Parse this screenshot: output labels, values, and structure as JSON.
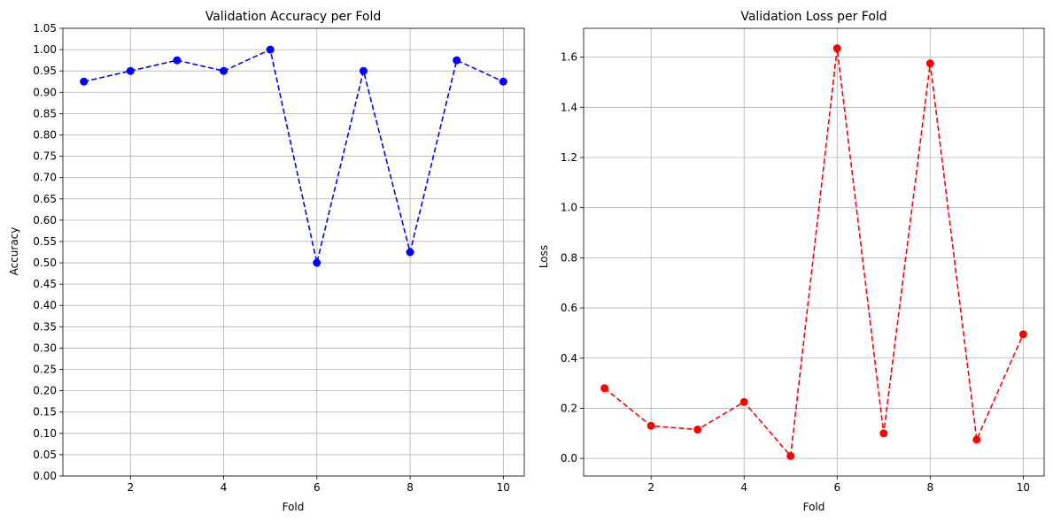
{
  "chart_data": [
    {
      "type": "line",
      "title": "Validation Accuracy per Fold",
      "xlabel": "Fold",
      "ylabel": "Accuracy",
      "x": [
        1,
        2,
        3,
        4,
        5,
        6,
        7,
        8,
        9,
        10
      ],
      "series": [
        {
          "values": [
            0.925,
            0.95,
            0.975,
            0.95,
            1.0,
            0.5,
            0.95,
            0.525,
            0.975,
            0.925
          ],
          "color": "#0000ff",
          "linestyle": "dashed",
          "marker": "circle"
        }
      ],
      "xlim": [
        0.55,
        10.45
      ],
      "ylim": [
        0.0,
        1.05
      ],
      "xticks": [
        2,
        4,
        6,
        8,
        10
      ],
      "xtick_labels": [
        "2",
        "4",
        "6",
        "8",
        "10"
      ],
      "yticks": [
        0.0,
        0.05,
        0.1,
        0.15,
        0.2,
        0.25,
        0.3,
        0.35,
        0.4,
        0.45,
        0.5,
        0.55,
        0.6,
        0.65,
        0.7,
        0.75,
        0.8,
        0.85,
        0.9,
        0.95,
        1.0,
        1.05
      ],
      "ytick_labels": [
        "0.00",
        "0.05",
        "0.10",
        "0.15",
        "0.20",
        "0.25",
        "0.30",
        "0.35",
        "0.40",
        "0.45",
        "0.50",
        "0.55",
        "0.60",
        "0.65",
        "0.70",
        "0.75",
        "0.80",
        "0.85",
        "0.90",
        "0.95",
        "1.00",
        "1.05"
      ],
      "grid": true
    },
    {
      "type": "line",
      "title": "Validation Loss per Fold",
      "xlabel": "Fold",
      "ylabel": "Loss",
      "x": [
        1,
        2,
        3,
        4,
        5,
        6,
        7,
        8,
        9,
        10
      ],
      "series": [
        {
          "values": [
            0.28,
            0.13,
            0.115,
            0.225,
            0.01,
            1.635,
            0.1,
            1.575,
            0.075,
            0.495
          ],
          "color": "#ff0000",
          "linestyle": "dashed",
          "marker": "circle"
        }
      ],
      "xlim": [
        0.55,
        10.45
      ],
      "ylim": [
        -0.07,
        1.715
      ],
      "xticks": [
        2,
        4,
        6,
        8,
        10
      ],
      "xtick_labels": [
        "2",
        "4",
        "6",
        "8",
        "10"
      ],
      "yticks": [
        0.0,
        0.2,
        0.4,
        0.6,
        0.8,
        1.0,
        1.2,
        1.4,
        1.6
      ],
      "ytick_labels": [
        "0.0",
        "0.2",
        "0.4",
        "0.6",
        "0.8",
        "1.0",
        "1.2",
        "1.4",
        "1.6"
      ],
      "grid": true
    }
  ]
}
